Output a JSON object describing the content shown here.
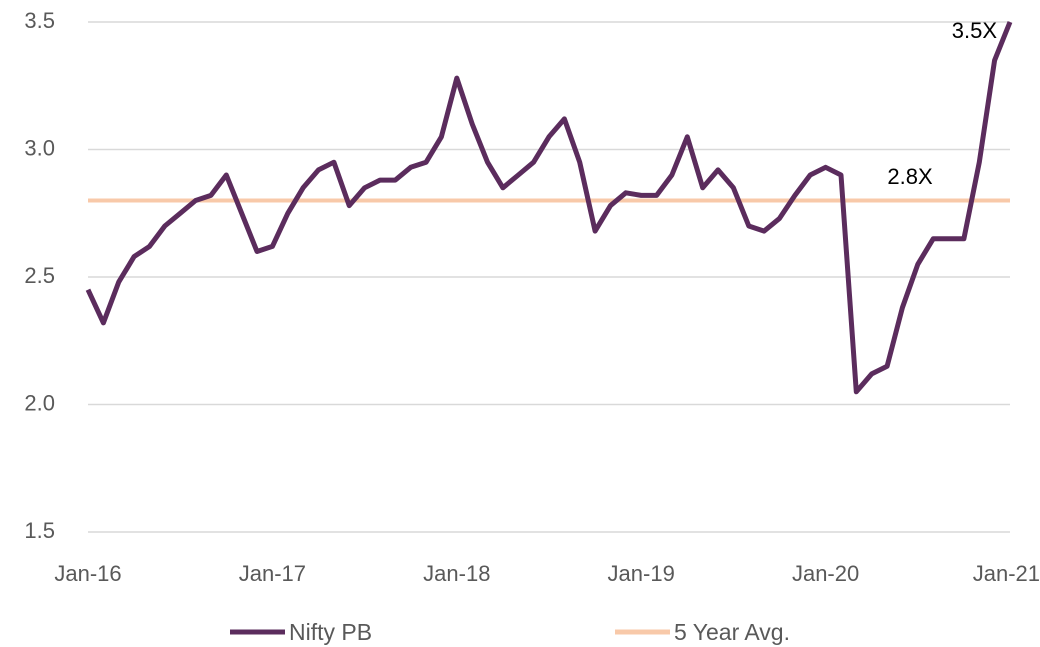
{
  "chart_data": {
    "type": "line",
    "categories": [
      "Jan-16",
      null,
      null,
      null,
      null,
      null,
      null,
      null,
      null,
      null,
      null,
      null,
      "Jan-17",
      null,
      null,
      null,
      null,
      null,
      null,
      null,
      null,
      null,
      null,
      null,
      "Jan-18",
      null,
      null,
      null,
      null,
      null,
      null,
      null,
      null,
      null,
      null,
      null,
      "Jan-19",
      null,
      null,
      null,
      null,
      null,
      null,
      null,
      null,
      null,
      null,
      null,
      "Jan-20",
      null,
      null,
      null,
      null,
      null,
      null,
      null,
      null,
      null,
      null,
      null,
      "Jan-21"
    ],
    "series": [
      {
        "name": "Nifty PB",
        "color": "#5b2c5d",
        "values": [
          2.45,
          2.32,
          2.48,
          2.58,
          2.62,
          2.7,
          2.75,
          2.8,
          2.82,
          2.9,
          2.75,
          2.6,
          2.62,
          2.75,
          2.85,
          2.92,
          2.95,
          2.78,
          2.85,
          2.88,
          2.88,
          2.93,
          2.95,
          3.05,
          3.28,
          3.1,
          2.95,
          2.85,
          2.9,
          2.95,
          3.05,
          3.12,
          2.95,
          2.68,
          2.78,
          2.83,
          2.82,
          2.82,
          2.9,
          3.05,
          2.85,
          2.92,
          2.85,
          2.7,
          2.68,
          2.73,
          2.82,
          2.9,
          2.93,
          2.9,
          2.05,
          2.12,
          2.15,
          2.38,
          2.55,
          2.65,
          2.65,
          2.65,
          2.95,
          3.35,
          3.5
        ]
      },
      {
        "name": "5 Year Avg.",
        "color": "#f8c9a9",
        "values": [
          2.8,
          2.8,
          2.8,
          2.8,
          2.8,
          2.8,
          2.8,
          2.8,
          2.8,
          2.8,
          2.8,
          2.8,
          2.8,
          2.8,
          2.8,
          2.8,
          2.8,
          2.8,
          2.8,
          2.8,
          2.8,
          2.8,
          2.8,
          2.8,
          2.8,
          2.8,
          2.8,
          2.8,
          2.8,
          2.8,
          2.8,
          2.8,
          2.8,
          2.8,
          2.8,
          2.8,
          2.8,
          2.8,
          2.8,
          2.8,
          2.8,
          2.8,
          2.8,
          2.8,
          2.8,
          2.8,
          2.8,
          2.8,
          2.8,
          2.8,
          2.8,
          2.8,
          2.8,
          2.8,
          2.8,
          2.8,
          2.8,
          2.8,
          2.8,
          2.8,
          2.8
        ]
      }
    ],
    "annotations": [
      "3.5X",
      "2.8X"
    ],
    "ylim": [
      1.5,
      3.5
    ],
    "yticks": [
      1.5,
      {
        "value": 2,
        "label": "2.0"
      },
      2.5,
      {
        "value": 3,
        "label": "3.0"
      },
      3.5
    ],
    "grid": true,
    "legend": "bottom"
  }
}
